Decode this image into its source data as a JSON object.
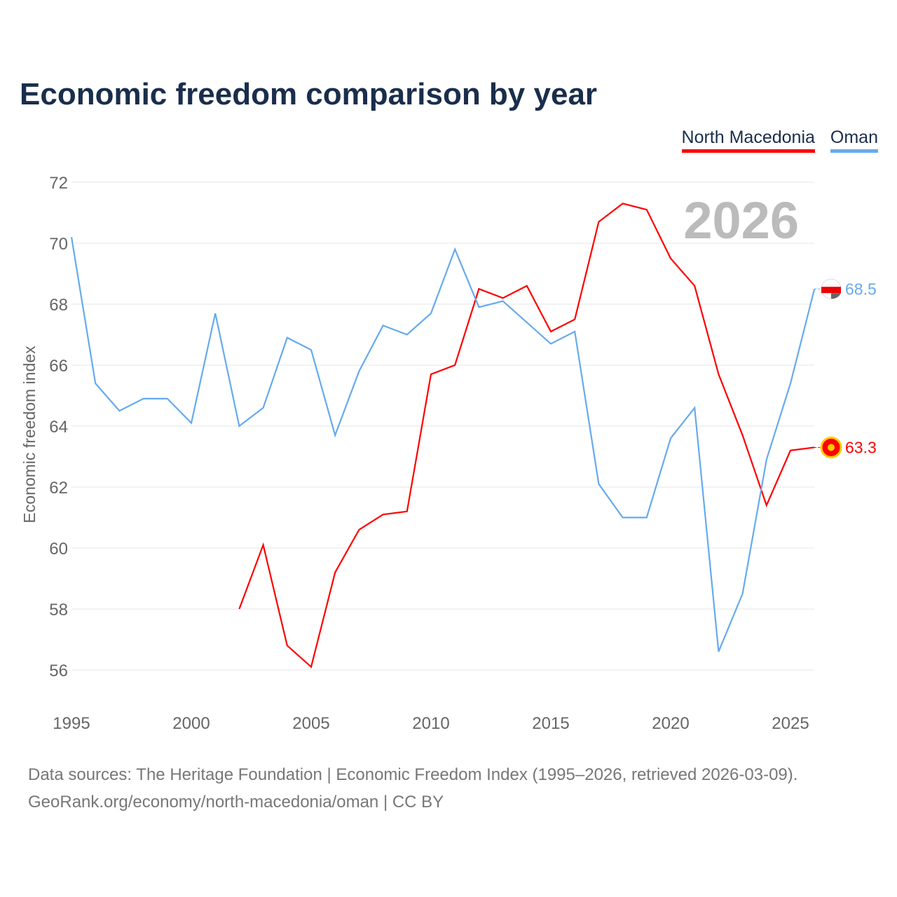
{
  "title": "Economic freedom comparison by year",
  "footer": {
    "line1": "Data sources: The Heritage Foundation | Economic Freedom Index (1995–2026, retrieved 2026-03-09).",
    "line2": "GeoRank.org/economy/north-macedonia/oman | CC BY"
  },
  "chart_data": {
    "type": "line",
    "title": "Economic freedom comparison by year",
    "xlabel": "",
    "ylabel": "Economic freedom index",
    "xlim": [
      1995,
      2026
    ],
    "ylim": [
      56,
      72
    ],
    "x_ticks": [
      "1995",
      "2000",
      "2005",
      "2010",
      "2015",
      "2020",
      "2025"
    ],
    "y_ticks": [
      "56",
      "58",
      "60",
      "62",
      "64",
      "66",
      "68",
      "70",
      "72"
    ],
    "grid": true,
    "legend_placement": "top-right",
    "year_label": "2026",
    "series": [
      {
        "name": "North Macedonia",
        "color": "#ff0000",
        "end_label": "63.3",
        "x": [
          2002,
          2003,
          2004,
          2005,
          2006,
          2007,
          2008,
          2009,
          2010,
          2011,
          2012,
          2013,
          2014,
          2015,
          2016,
          2017,
          2018,
          2019,
          2020,
          2021,
          2022,
          2023,
          2024,
          2025,
          2026
        ],
        "values": [
          58.0,
          60.1,
          56.8,
          56.1,
          59.2,
          60.6,
          61.1,
          61.2,
          65.7,
          66.0,
          68.5,
          68.2,
          68.6,
          67.1,
          67.5,
          70.7,
          71.3,
          71.1,
          69.5,
          68.6,
          65.7,
          63.7,
          61.4,
          63.2,
          63.3
        ]
      },
      {
        "name": "Oman",
        "color": "#66aaee",
        "end_label": "68.5",
        "x": [
          1995,
          1996,
          1997,
          1998,
          1999,
          2000,
          2001,
          2002,
          2003,
          2004,
          2005,
          2006,
          2007,
          2008,
          2009,
          2010,
          2011,
          2012,
          2013,
          2014,
          2015,
          2016,
          2017,
          2018,
          2019,
          2020,
          2021,
          2022,
          2023,
          2024,
          2025,
          2026
        ],
        "values": [
          70.2,
          65.4,
          64.5,
          64.9,
          64.9,
          64.1,
          67.7,
          64.0,
          64.6,
          66.9,
          66.5,
          63.7,
          65.8,
          67.3,
          67.0,
          67.7,
          69.8,
          67.9,
          68.1,
          67.4,
          66.7,
          67.1,
          62.1,
          61.0,
          61.0,
          63.6,
          64.6,
          56.6,
          58.5,
          62.9,
          65.4,
          68.5
        ]
      }
    ]
  }
}
